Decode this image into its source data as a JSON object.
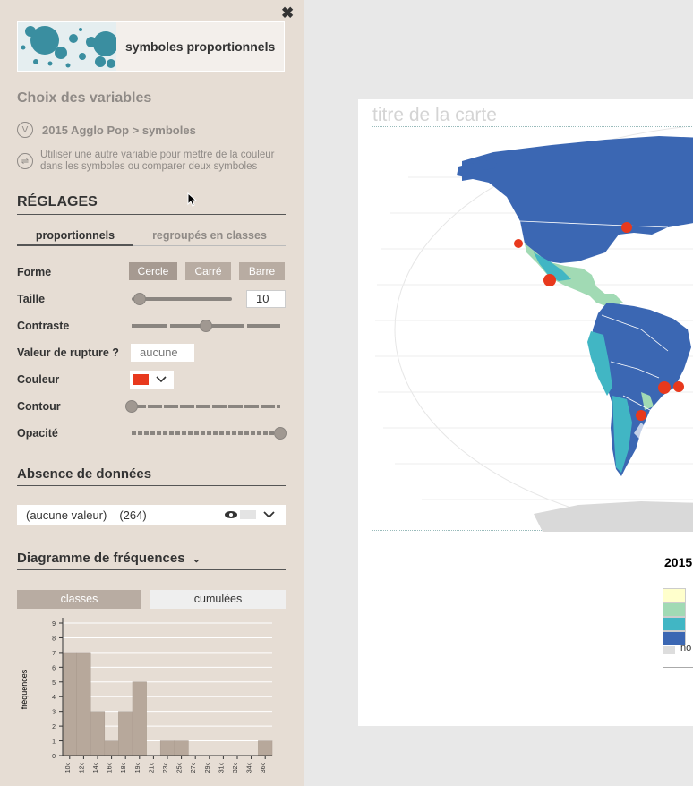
{
  "panel": {
    "close_icon": "close-icon",
    "title": "symboles proportionnels",
    "choix_title": "Choix des variables",
    "variable_badge": "V",
    "variable": "2015 Agglo Pop > symboles",
    "alt_variable_note": "Utiliser une autre variable pour mettre de la couleur dans les symboles ou comparer deux symboles",
    "reglages": "RÉGLAGES",
    "tabs": [
      {
        "label": "proportionnels",
        "active": true
      },
      {
        "label": "regroupés en classes",
        "active": false
      }
    ],
    "forme_label": "Forme",
    "shapes": [
      "Cercle",
      "Carré",
      "Barre"
    ],
    "taille_label": "Taille",
    "taille_value": "10",
    "contraste_label": "Contraste",
    "rupture_label": "Valeur de rupture ?",
    "rupture_value": "aucune",
    "couleur_label": "Couleur",
    "couleur_value": "#e8391d",
    "contour_label": "Contour",
    "opacite_label": "Opacité",
    "absence_title": "Absence de données",
    "absence_value": "(aucune valeur)",
    "absence_count": "(264)",
    "freq_title": "Diagramme de fréquences",
    "freq_tabs": [
      {
        "label": "classes",
        "active": true
      },
      {
        "label": "cumulées",
        "active": false
      }
    ]
  },
  "sliders": {
    "taille": 0.08,
    "contraste": 0.5,
    "contour": 0.0,
    "opacite": 1.0
  },
  "chart_data": {
    "type": "bar",
    "ylabel": "fréquences",
    "ylim": [
      0,
      9
    ],
    "categories": [
      "10k",
      "12k",
      "14k",
      "16k",
      "18k",
      "19k",
      "21k",
      "23k",
      "25k",
      "27k",
      "29k",
      "31k",
      "32k",
      "34k",
      "36k"
    ],
    "values": [
      7,
      7,
      3,
      1,
      3,
      5,
      0,
      1,
      1,
      0,
      0,
      0,
      0,
      0,
      1
    ]
  },
  "map": {
    "title": "titre de la carte",
    "legend_title": "2015",
    "legend_colors": [
      "#ffffcc",
      "#a1dab4",
      "#41b6c4",
      "#3b67b3"
    ],
    "nodata_label": "no",
    "symbol_color": "#e8391d",
    "land_color": "#3b67b3"
  }
}
